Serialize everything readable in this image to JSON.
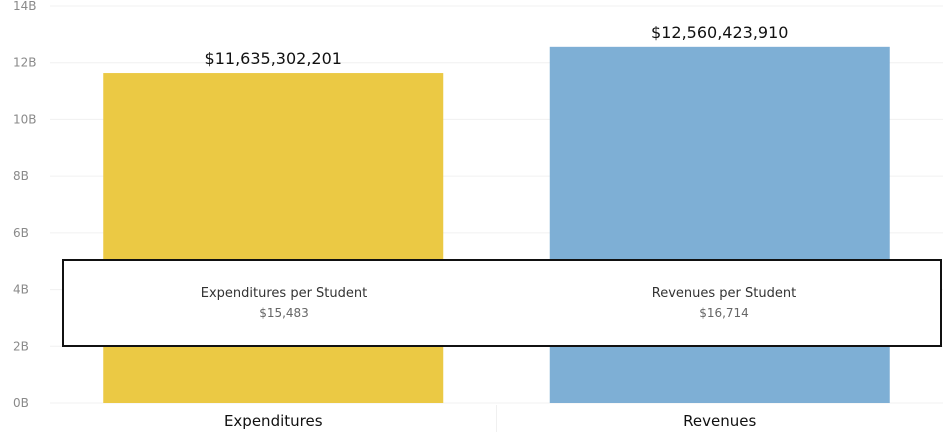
{
  "chart_data": {
    "type": "bar",
    "categories": [
      "Expenditures",
      "Revenues"
    ],
    "values": [
      11635302201,
      12560423910
    ],
    "data_labels": [
      "$11,635,302,201",
      "$12,560,423,910"
    ],
    "colors": [
      "#ebc944",
      "#7eafd5"
    ],
    "yticks": [
      "0B",
      "2B",
      "4B",
      "6B",
      "8B",
      "10B",
      "12B",
      "14B"
    ],
    "ylim": [
      0,
      14000000000
    ],
    "grid": true
  },
  "per_student": [
    {
      "label": "Expenditures per Student",
      "value": "$15,483"
    },
    {
      "label": "Revenues per Student",
      "value": "$16,714"
    }
  ]
}
